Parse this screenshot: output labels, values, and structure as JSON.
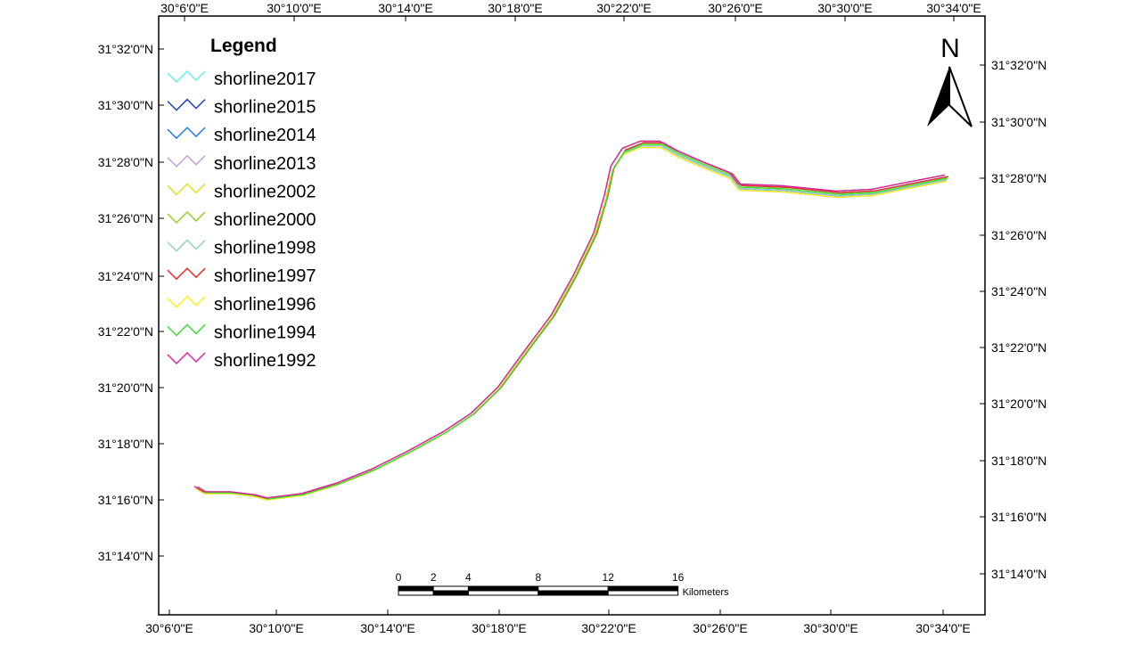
{
  "legend": {
    "title": "Legend",
    "items": [
      {
        "label": "shorline2017",
        "color": "#5ff0e6"
      },
      {
        "label": "shorline2015",
        "color": "#1f3fb0"
      },
      {
        "label": "shorline2014",
        "color": "#2a7fe0"
      },
      {
        "label": "shorline2013",
        "color": "#c8a0e0"
      },
      {
        "label": "shorline2002",
        "color": "#e0e020"
      },
      {
        "label": "shorline2000",
        "color": "#90d020"
      },
      {
        "label": "shorline1998",
        "color": "#90d0c0"
      },
      {
        "label": "shorline1997",
        "color": "#e83030"
      },
      {
        "label": "shorline1996",
        "color": "#f8f020"
      },
      {
        "label": "shorline1994",
        "color": "#40e030"
      },
      {
        "label": "shorline1992",
        "color": "#e020a0"
      }
    ]
  },
  "graticule": {
    "top": [
      "30°6'0\"E",
      "30°10'0\"E",
      "30°14'0\"E",
      "30°18'0\"E",
      "30°22'0\"E",
      "30°26'0\"E",
      "30°30'0\"E",
      "30°34'0\"E"
    ],
    "bottom": [
      "30°6'0\"E",
      "30°10'0\"E",
      "30°14'0\"E",
      "30°18'0\"E",
      "30°22'0\"E",
      "30°26'0\"E",
      "30°30'0\"E",
      "30°34'0\"E"
    ],
    "left": [
      "31°32'0\"N",
      "31°30'0\"N",
      "31°28'0\"N",
      "31°26'0\"N",
      "31°24'0\"N",
      "31°22'0\"N",
      "31°20'0\"N",
      "31°18'0\"N",
      "31°16'0\"N",
      "31°14'0\"N"
    ],
    "right": [
      "31°32'0\"N",
      "31°30'0\"N",
      "31°28'0\"N",
      "31°26'0\"N",
      "31°24'0\"N",
      "31°22'0\"N",
      "31°20'0\"N",
      "31°18'0\"N",
      "31°16'0\"N",
      "31°14'0\"N"
    ]
  },
  "north": "N",
  "scale": {
    "ticks": [
      0,
      2,
      4,
      8,
      12,
      16
    ],
    "unit": "Kilometers"
  }
}
